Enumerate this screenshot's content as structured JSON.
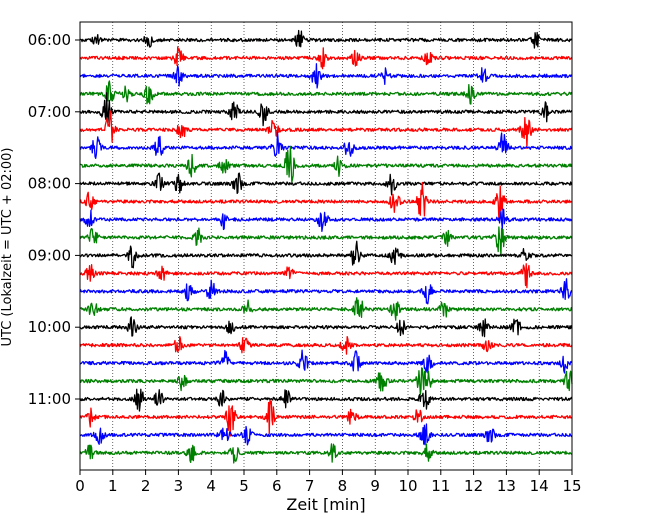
{
  "chart_data": {
    "type": "line",
    "title": "",
    "xlabel": "Zeit  [min]",
    "ylabel": "UTC (Lokalzeit = UTC + 02:00)",
    "xlim": [
      0,
      15
    ],
    "x_ticks": [
      "0",
      "1",
      "2",
      "3",
      "4",
      "5",
      "6",
      "7",
      "8",
      "9",
      "10",
      "11",
      "12",
      "13",
      "14",
      "15"
    ],
    "y_tick_labels": [
      {
        "row": 0,
        "label": "06:00"
      },
      {
        "row": 4,
        "label": "07:00"
      },
      {
        "row": 8,
        "label": "08:00"
      },
      {
        "row": 12,
        "label": "09:00"
      },
      {
        "row": 16,
        "label": "10:00"
      },
      {
        "row": 20,
        "label": "11:00"
      }
    ],
    "rows_per_hour": 4,
    "minutes_per_row": 15,
    "grid": "vertical dotted at every minute",
    "trace_colors": [
      "#000000",
      "#ff0000",
      "#0000ff",
      "#008000"
    ],
    "rows": [
      {
        "start": "06:00",
        "events": [
          [
            0.5,
            0.6
          ],
          [
            2.1,
            0.8
          ],
          [
            6.7,
            1.0
          ],
          [
            13.9,
            0.9
          ]
        ]
      },
      {
        "start": "06:15",
        "events": [
          [
            3.0,
            1.2
          ],
          [
            7.4,
            1.1
          ],
          [
            8.4,
            0.9
          ],
          [
            10.6,
            0.8
          ]
        ]
      },
      {
        "start": "06:30",
        "events": [
          [
            3.0,
            1.0
          ],
          [
            7.2,
            1.4
          ],
          [
            9.3,
            1.0
          ],
          [
            12.3,
            0.9
          ]
        ]
      },
      {
        "start": "06:45",
        "events": [
          [
            0.9,
            1.3
          ],
          [
            1.4,
            1.0
          ],
          [
            2.1,
            1.2
          ],
          [
            11.9,
            1.0
          ]
        ]
      },
      {
        "start": "07:00",
        "events": [
          [
            0.8,
            2.5
          ],
          [
            4.7,
            1.3
          ],
          [
            5.6,
            1.6
          ],
          [
            14.2,
            1.0
          ]
        ]
      },
      {
        "start": "07:15",
        "events": [
          [
            0.9,
            2.2
          ],
          [
            3.1,
            1.2
          ],
          [
            5.9,
            1.0
          ],
          [
            13.6,
            2.2
          ]
        ]
      },
      {
        "start": "07:30",
        "events": [
          [
            0.5,
            1.3
          ],
          [
            2.4,
            1.3
          ],
          [
            6.0,
            1.8
          ],
          [
            8.2,
            1.3
          ],
          [
            12.9,
            1.8
          ]
        ]
      },
      {
        "start": "07:45",
        "events": [
          [
            3.4,
            1.4
          ],
          [
            4.4,
            1.2
          ],
          [
            6.4,
            2.9
          ],
          [
            7.9,
            1.2
          ]
        ]
      },
      {
        "start": "08:00",
        "events": [
          [
            2.4,
            1.1
          ],
          [
            3.0,
            1.0
          ],
          [
            4.8,
            1.3
          ],
          [
            9.5,
            1.2
          ]
        ]
      },
      {
        "start": "08:15",
        "events": [
          [
            0.3,
            1.1
          ],
          [
            9.6,
            1.5
          ],
          [
            10.4,
            3.2
          ],
          [
            12.8,
            2.0
          ]
        ]
      },
      {
        "start": "08:30",
        "events": [
          [
            0.3,
            1.1
          ],
          [
            4.4,
            1.0
          ],
          [
            7.4,
            1.5
          ],
          [
            12.9,
            1.0
          ]
        ]
      },
      {
        "start": "08:45",
        "events": [
          [
            0.4,
            1.0
          ],
          [
            3.6,
            0.9
          ],
          [
            11.2,
            0.9
          ],
          [
            12.8,
            2.3
          ]
        ]
      },
      {
        "start": "09:00",
        "events": [
          [
            1.6,
            1.3
          ],
          [
            8.4,
            1.6
          ],
          [
            9.6,
            1.3
          ],
          [
            13.6,
            1.0
          ]
        ]
      },
      {
        "start": "09:15",
        "events": [
          [
            0.3,
            1.0
          ],
          [
            2.5,
            0.9
          ],
          [
            6.4,
            0.9
          ],
          [
            13.6,
            1.5
          ]
        ]
      },
      {
        "start": "09:30",
        "events": [
          [
            3.3,
            1.1
          ],
          [
            4.0,
            1.2
          ],
          [
            10.6,
            1.5
          ],
          [
            14.8,
            1.4
          ]
        ]
      },
      {
        "start": "09:45",
        "events": [
          [
            0.4,
            0.9
          ],
          [
            5.1,
            0.9
          ],
          [
            8.5,
            1.6
          ],
          [
            9.6,
            1.1
          ],
          [
            11.1,
            1.0
          ]
        ]
      },
      {
        "start": "10:00",
        "events": [
          [
            1.6,
            1.2
          ],
          [
            4.6,
            0.8
          ],
          [
            9.8,
            1.0
          ],
          [
            12.3,
            1.0
          ],
          [
            13.3,
            1.0
          ]
        ]
      },
      {
        "start": "10:15",
        "events": [
          [
            3.0,
            0.9
          ],
          [
            5.0,
            0.9
          ],
          [
            8.1,
            0.9
          ],
          [
            12.4,
            0.9
          ]
        ]
      },
      {
        "start": "10:30",
        "events": [
          [
            4.4,
            1.5
          ],
          [
            6.8,
            1.5
          ],
          [
            8.4,
            1.2
          ],
          [
            10.6,
            1.2
          ],
          [
            14.8,
            1.0
          ]
        ]
      },
      {
        "start": "10:45",
        "events": [
          [
            3.1,
            1.0
          ],
          [
            9.2,
            1.4
          ],
          [
            10.4,
            1.5
          ],
          [
            10.6,
            1.0
          ],
          [
            14.9,
            1.3
          ]
        ]
      },
      {
        "start": "11:00",
        "events": [
          [
            1.8,
            1.6
          ],
          [
            2.4,
            1.0
          ],
          [
            4.3,
            1.0
          ],
          [
            6.3,
            1.0
          ],
          [
            10.5,
            1.7
          ]
        ]
      },
      {
        "start": "11:15",
        "events": [
          [
            0.3,
            1.0
          ],
          [
            4.6,
            2.3
          ],
          [
            5.8,
            1.8
          ],
          [
            8.3,
            1.0
          ],
          [
            10.3,
            0.9
          ]
        ]
      },
      {
        "start": "11:30",
        "events": [
          [
            0.6,
            1.0
          ],
          [
            4.4,
            1.3
          ],
          [
            5.1,
            1.1
          ],
          [
            10.5,
            1.7
          ],
          [
            12.5,
            1.0
          ]
        ]
      },
      {
        "start": "11:45",
        "events": [
          [
            0.3,
            0.8
          ],
          [
            3.4,
            1.1
          ],
          [
            4.7,
            1.0
          ],
          [
            7.7,
            0.9
          ],
          [
            10.6,
            0.9
          ]
        ]
      }
    ]
  }
}
